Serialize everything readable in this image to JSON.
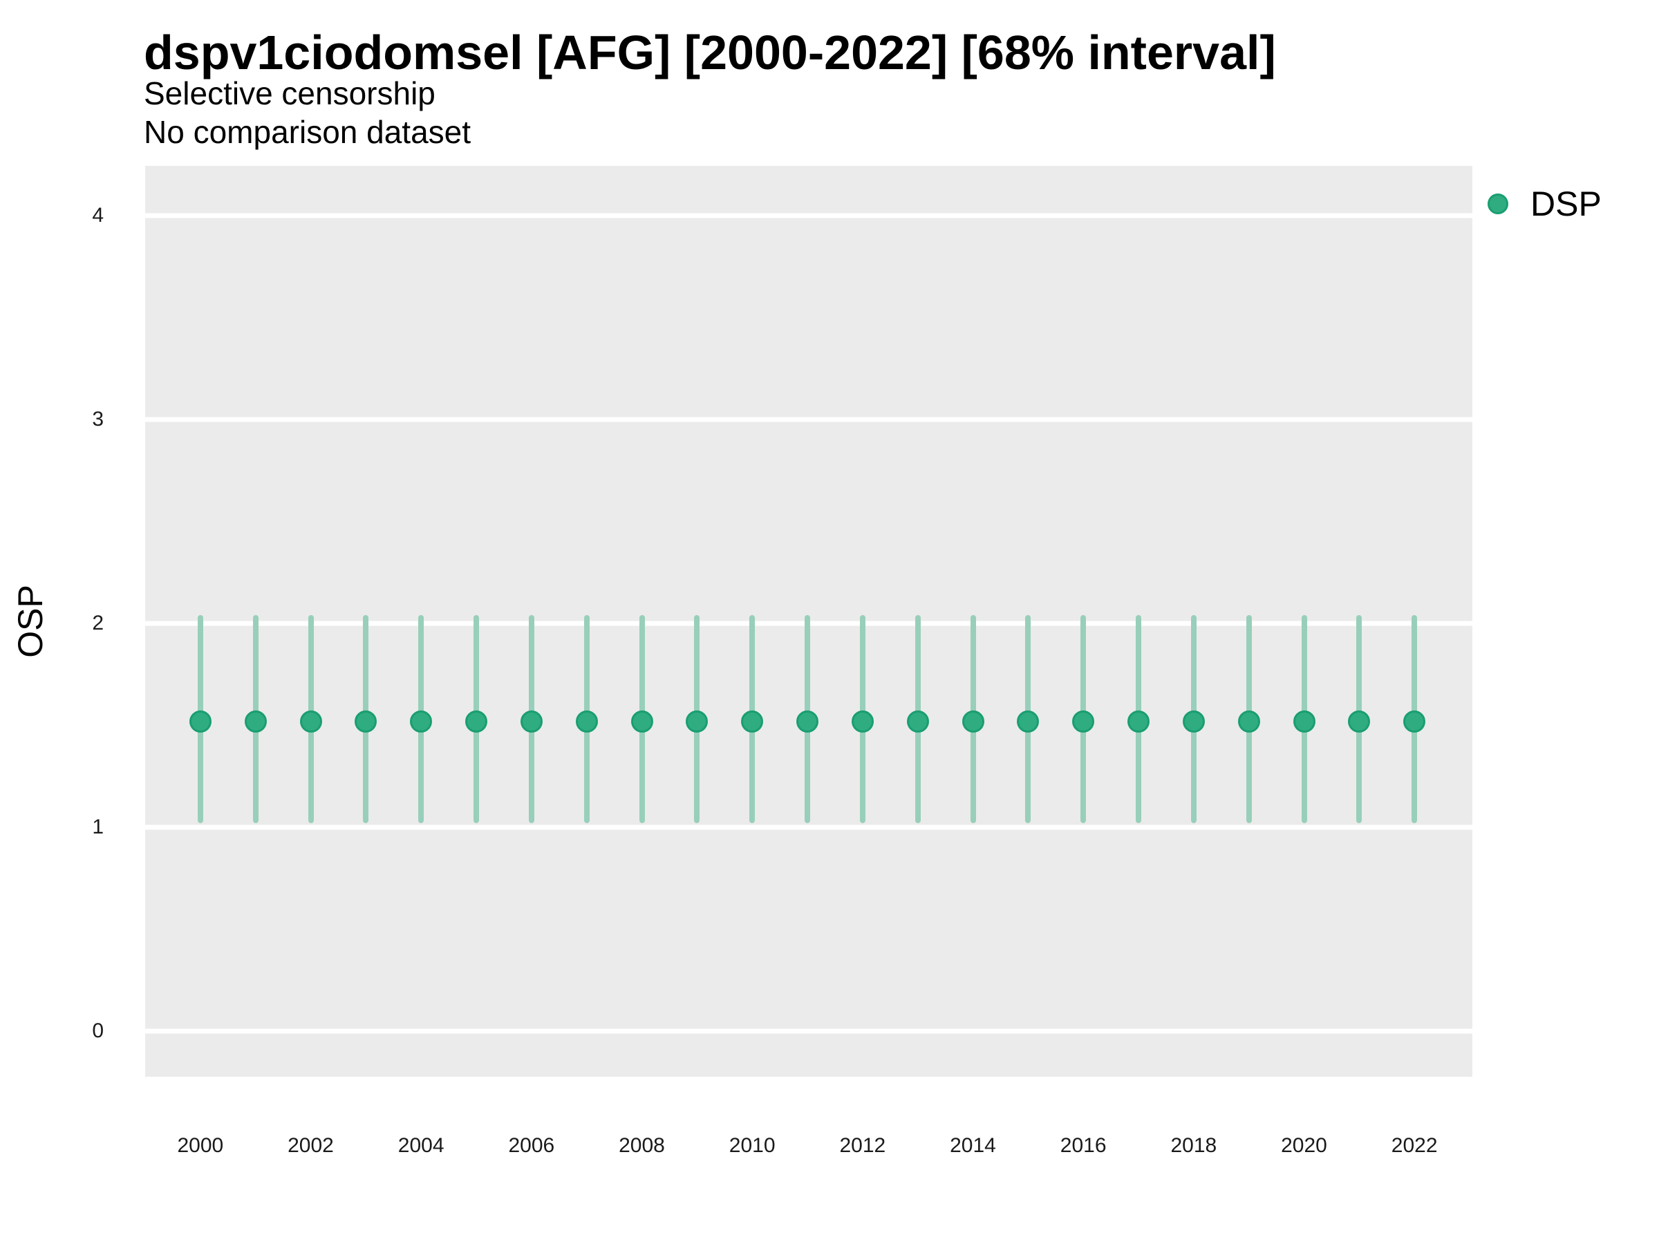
{
  "header": {
    "title": "dspv1ciodomsel [AFG] [2000-2022] [68% interval]",
    "subtitle1": "Selective censorship",
    "subtitle2": "No comparison dataset"
  },
  "legend": {
    "items": [
      {
        "label": "DSP",
        "swatch": "point-icon"
      }
    ]
  },
  "chart_data": {
    "type": "pointrange",
    "title": "dspv1ciodomsel [AFG] [2000-2022] [68% interval]",
    "subtitle": [
      "Selective censorship",
      "No comparison dataset"
    ],
    "interval": "68%",
    "xlabel": "",
    "ylabel": "OSP",
    "x": [
      2000,
      2001,
      2002,
      2003,
      2004,
      2005,
      2006,
      2007,
      2008,
      2009,
      2010,
      2011,
      2012,
      2013,
      2014,
      2015,
      2016,
      2017,
      2018,
      2019,
      2020,
      2021,
      2022
    ],
    "series": [
      {
        "name": "DSP",
        "values": [
          1.52,
          1.52,
          1.52,
          1.52,
          1.52,
          1.52,
          1.52,
          1.52,
          1.52,
          1.52,
          1.52,
          1.52,
          1.52,
          1.52,
          1.52,
          1.52,
          1.52,
          1.52,
          1.52,
          1.52,
          1.52,
          1.52,
          1.52
        ],
        "lower": [
          1.02,
          1.02,
          1.02,
          1.02,
          1.02,
          1.02,
          1.02,
          1.02,
          1.02,
          1.02,
          1.02,
          1.02,
          1.02,
          1.02,
          1.02,
          1.02,
          1.02,
          1.02,
          1.02,
          1.02,
          1.02,
          1.02,
          1.02
        ],
        "upper": [
          2.04,
          2.04,
          2.04,
          2.04,
          2.04,
          2.04,
          2.04,
          2.04,
          2.04,
          2.04,
          2.04,
          2.04,
          2.04,
          2.04,
          2.04,
          2.04,
          2.04,
          2.04,
          2.04,
          2.04,
          2.04,
          2.04,
          2.04
        ]
      }
    ],
    "xticks": [
      2000,
      2002,
      2004,
      2006,
      2008,
      2010,
      2012,
      2014,
      2016,
      2018,
      2020,
      2022
    ],
    "yticks": [
      0,
      1,
      2,
      3,
      4
    ],
    "xlim": [
      1999.0,
      2023.05
    ],
    "ylim": [
      -0.224,
      4.244
    ],
    "grid": "horizontal-major-only",
    "legend_position": "right",
    "colors": {
      "point": "#2fad81",
      "point_border": "#1a9e71",
      "range_bar": "#98cfba",
      "panel_bg": "#ebebeb",
      "grid_line": "#ffffff",
      "title_text": "#000000",
      "tick_text": "#1a1a1a"
    }
  }
}
